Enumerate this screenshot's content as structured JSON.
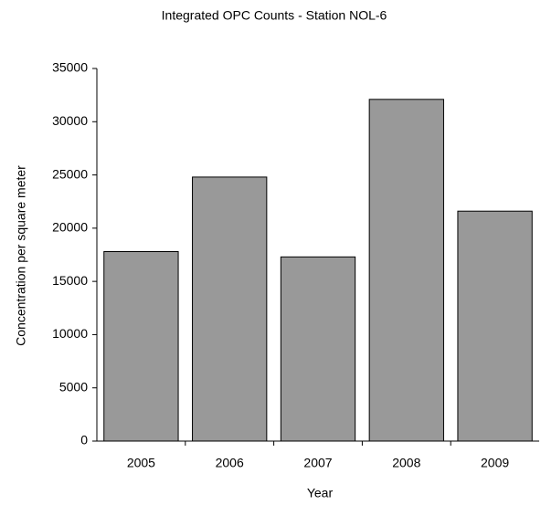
{
  "chart_data": {
    "type": "bar",
    "title": "Integrated OPC Counts - Station NOL-6",
    "x_label": "Year",
    "y_label": "Concentration per square meter",
    "categories": [
      "2005",
      "2006",
      "2007",
      "2008",
      "2009"
    ],
    "values": [
      17800,
      24800,
      17300,
      32100,
      21600
    ],
    "color": "#999999",
    "ylim": [
      0,
      35000
    ],
    "yticks": [
      0,
      5000,
      10000,
      15000,
      20000,
      25000,
      30000,
      35000
    ],
    "grid": false
  }
}
